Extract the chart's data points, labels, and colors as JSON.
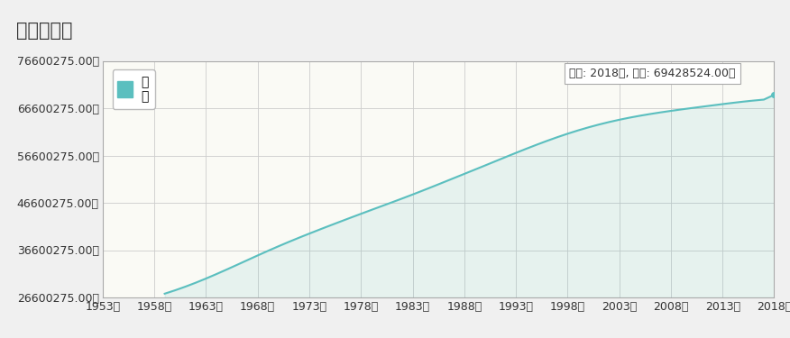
{
  "title": "人口走势图",
  "legend_label": "泰\n国",
  "legend_label_line1": "泰",
  "legend_label_line2": "国",
  "line_color": "#5bbfbf",
  "fill_color": "#5bbfbf",
  "fill_alpha": 0.12,
  "background_color": "#f0f0f0",
  "title_bg_color": "#e8e8e8",
  "plot_bg_color": "#fafaf5",
  "grid_color": "#cccccc",
  "annotation_text": "年份: 2018年, 数据: 69428524.00人",
  "xlabel_suffix": "年",
  "ylabel_suffix": "人",
  "ylim_min": 26600275.0,
  "ylim_max": 76600275.0,
  "yticks": [
    26600275.0,
    36600275.0,
    46600275.0,
    56600275.0,
    66600275.0,
    76600275.0
  ],
  "xticks": [
    1953,
    1958,
    1963,
    1968,
    1973,
    1978,
    1983,
    1988,
    1993,
    1998,
    2003,
    2008,
    2013,
    2018
  ],
  "xlim_min": 1953,
  "xlim_max": 2018,
  "population_data": {
    "1959": 27397280,
    "1960": 28107944,
    "1961": 28880943,
    "1962": 29712960,
    "1963": 30600694,
    "1964": 31534573,
    "1965": 32501665,
    "1966": 33488872,
    "1967": 34484226,
    "1968": 35476891,
    "1969": 36451982,
    "1970": 37403668,
    "1971": 38328018,
    "1972": 39225028,
    "1973": 40099011,
    "1974": 40955009,
    "1975": 41797748,
    "1976": 42632021,
    "1977": 43458963,
    "1978": 44278200,
    "1979": 45091413,
    "1980": 45898752,
    "1981": 46706478,
    "1982": 47523139,
    "1983": 48355468,
    "1984": 49205764,
    "1985": 50072309,
    "1986": 50949773,
    "1987": 51831219,
    "1988": 52713282,
    "1989": 53596069,
    "1990": 54482756,
    "1991": 55375474,
    "1992": 56269648,
    "1993": 57154655,
    "1994": 58024020,
    "1995": 58870505,
    "1996": 59686861,
    "1997": 60466869,
    "1998": 61204167,
    "1999": 61894699,
    "2000": 62534932,
    "2001": 63124087,
    "2002": 63663071,
    "2003": 64153462,
    "2004": 64597982,
    "2005": 65001371,
    "2006": 65369822,
    "2007": 65710280,
    "2008": 66028888,
    "2009": 66330222,
    "2010": 66619184,
    "2011": 66902082,
    "2012": 67182466,
    "2013": 67458878,
    "2014": 67726520,
    "2015": 67979553,
    "2016": 68207342,
    "2017": 68413800,
    "2018": 69428524
  },
  "title_fontsize": 15,
  "tick_fontsize": 9,
  "legend_fontsize": 10,
  "annotation_fontsize": 9,
  "spine_color": "#aaaaaa",
  "text_color": "#333333"
}
